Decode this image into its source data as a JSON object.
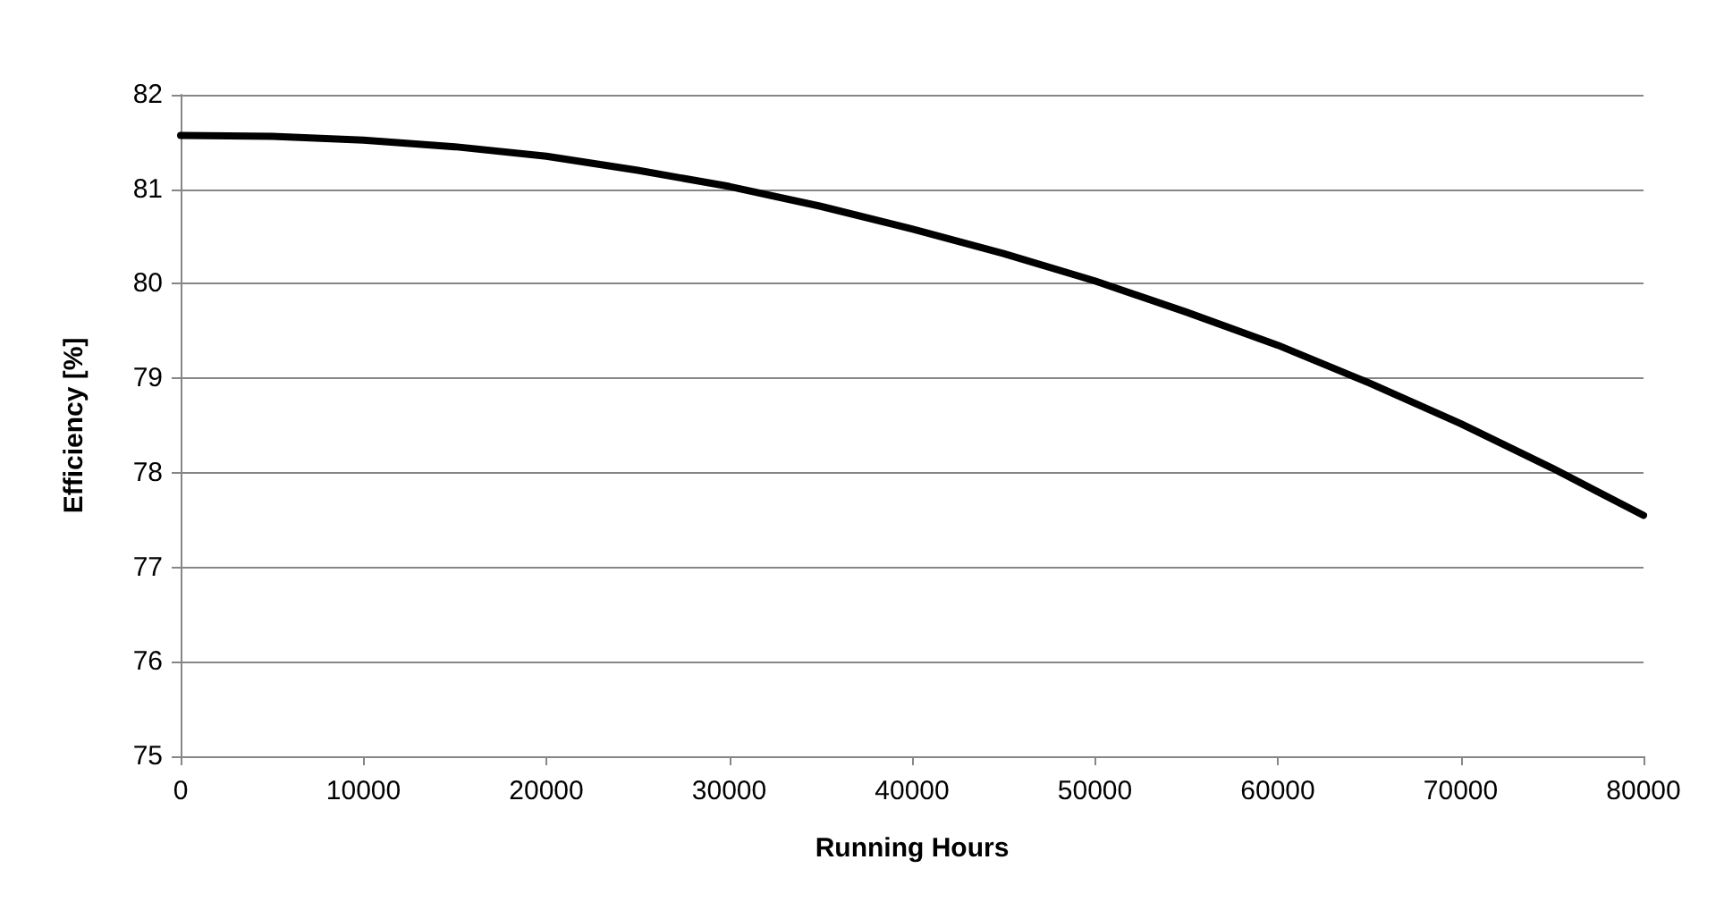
{
  "chart_data": {
    "type": "line",
    "xlabel": "Running Hours",
    "ylabel": "Efficiency [%]",
    "x": [
      0,
      5000,
      10000,
      15000,
      20000,
      25000,
      30000,
      35000,
      40000,
      45000,
      50000,
      55000,
      60000,
      65000,
      70000,
      75000,
      80000
    ],
    "series": [
      {
        "color": "#000000",
        "values": [
          81.57,
          81.56,
          81.52,
          81.45,
          81.35,
          81.2,
          81.03,
          80.82,
          80.58,
          80.32,
          80.03,
          79.7,
          79.35,
          78.95,
          78.52,
          78.05,
          77.55
        ]
      }
    ],
    "xlim": [
      0,
      80000
    ],
    "xticks": [
      0,
      10000,
      20000,
      30000,
      40000,
      50000,
      60000,
      70000,
      80000
    ],
    "ylim": [
      75,
      82
    ],
    "yticks": [
      75,
      76,
      77,
      78,
      79,
      80,
      81,
      82
    ],
    "grid": "y",
    "marker": "none",
    "line_style": "solid"
  }
}
